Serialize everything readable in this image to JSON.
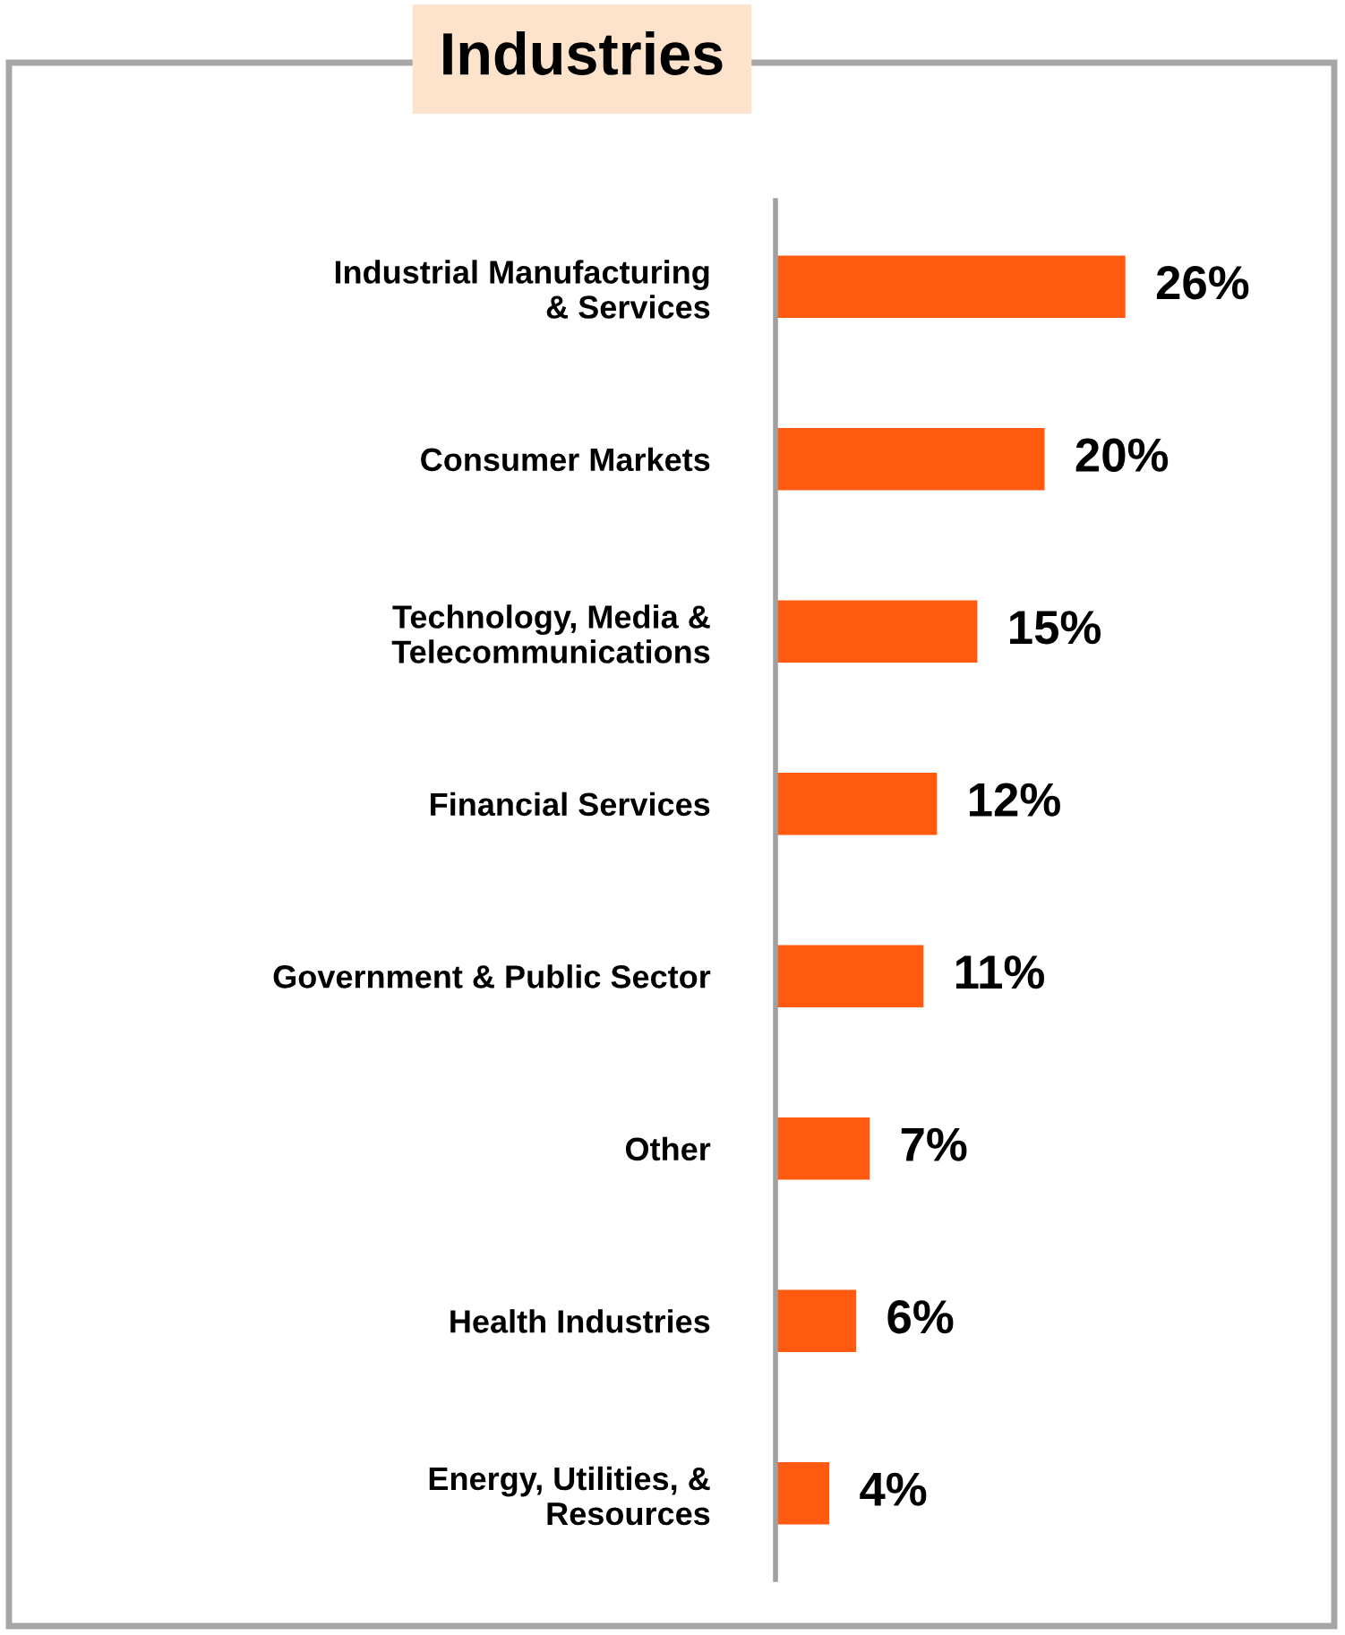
{
  "chart_data": {
    "type": "bar",
    "orientation": "horizontal",
    "title": "Industries",
    "categories": [
      "Industrial Manufacturing\n& Services",
      "Consumer Markets",
      "Technology, Media &\nTelecommunications",
      "Financial Services",
      "Government & Public Sector",
      "Other",
      "Health Industries",
      "Energy, Utilities, &\nResources"
    ],
    "values": [
      26,
      20,
      15,
      12,
      11,
      7,
      6,
      4
    ],
    "value_labels": [
      "26%",
      "20%",
      "15%",
      "12%",
      "11%",
      "7%",
      "6%",
      "4%"
    ],
    "color": "#ff5a0f",
    "tick_labels": "y",
    "grid": false,
    "legend": false
  }
}
